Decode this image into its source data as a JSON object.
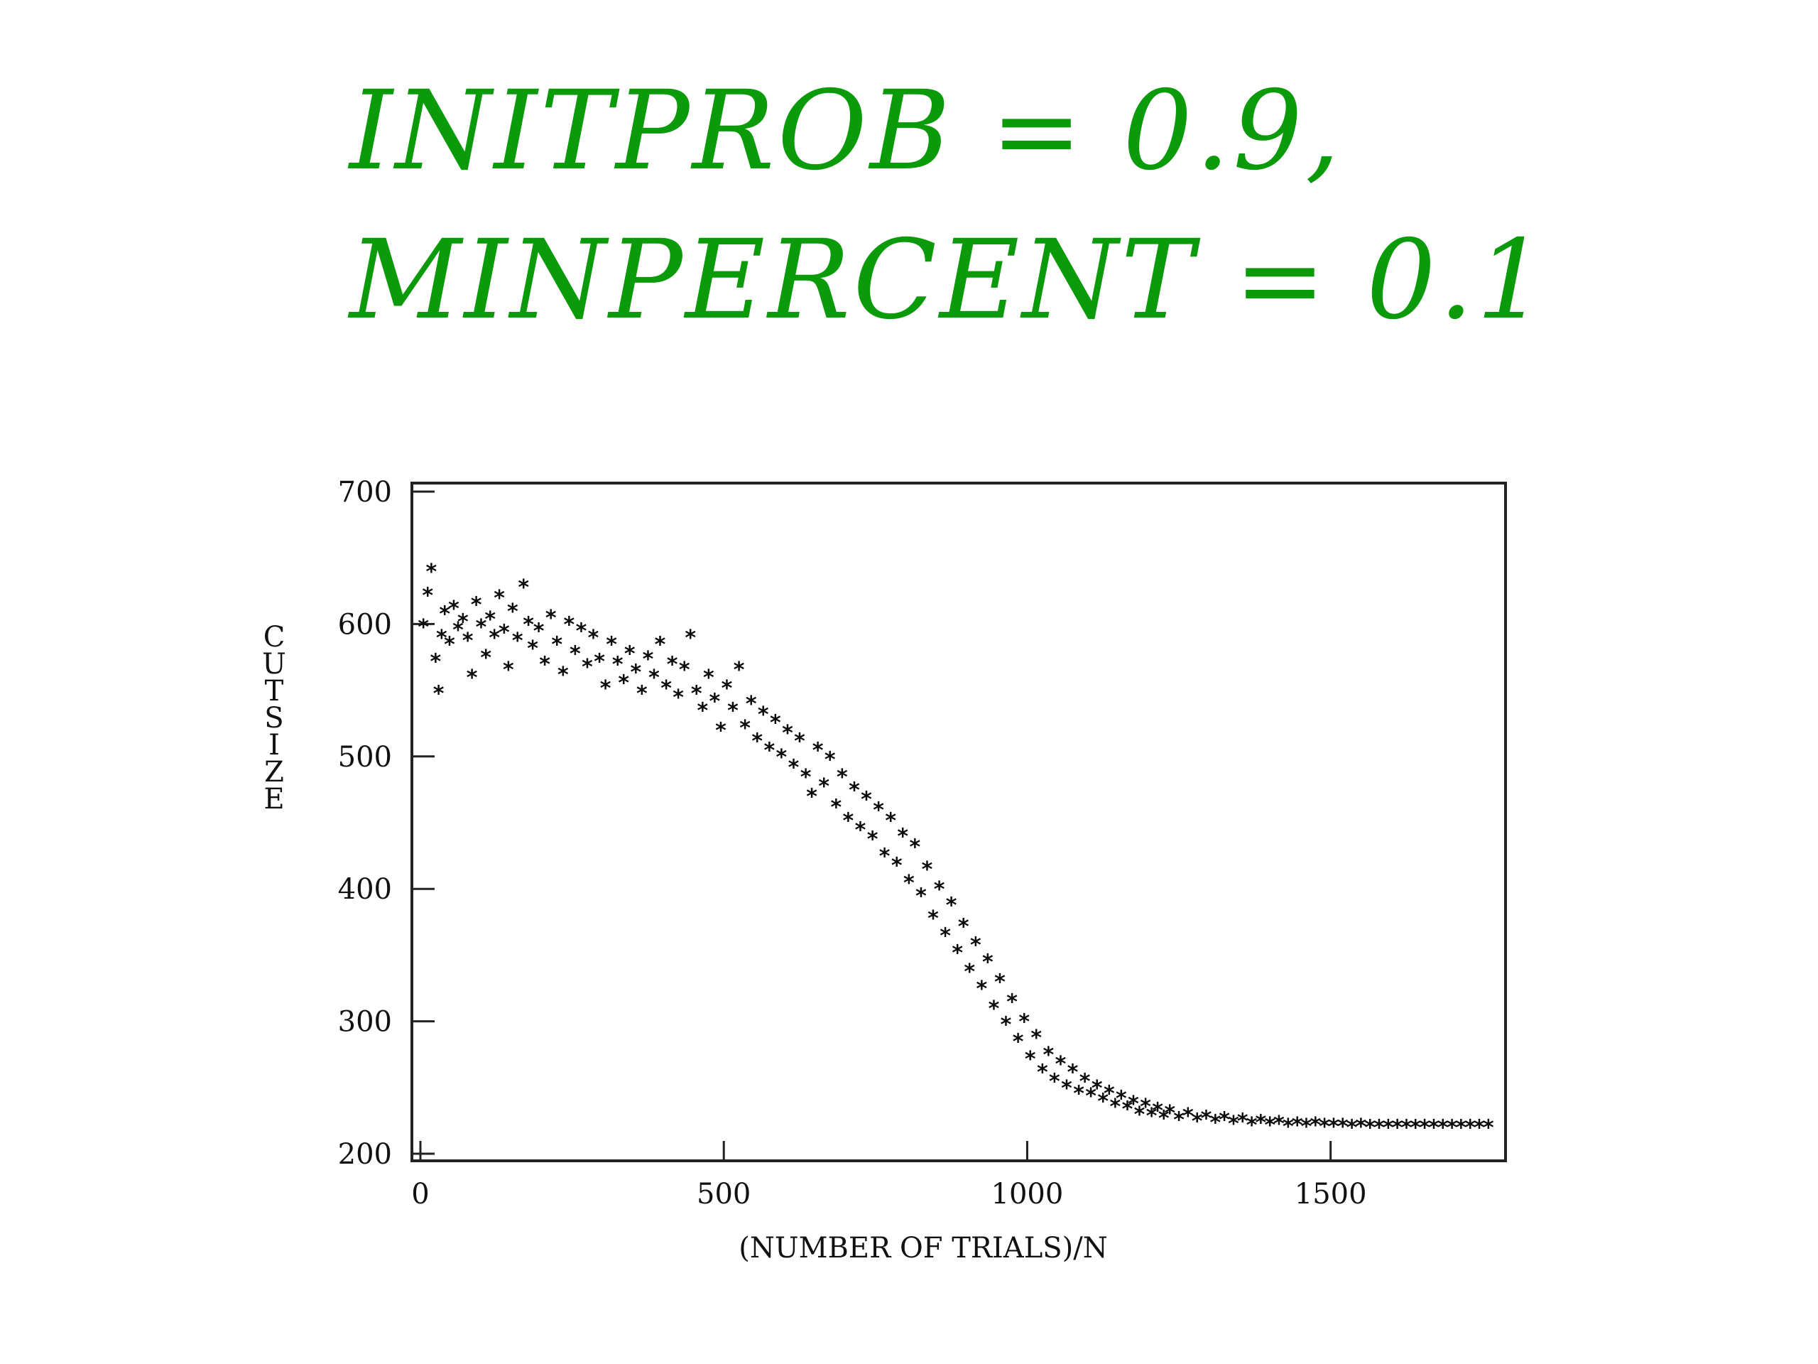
{
  "heading": {
    "line1": "INITPROB = 0.9,",
    "line2": "MINPERCENT = 0.1"
  },
  "chart_data": {
    "type": "scatter",
    "title": "",
    "xlabel": "(NUMBER OF TRIALS)/N",
    "ylabel": "CUTSIZE",
    "xlim": [
      0,
      1800
    ],
    "ylim": [
      200,
      700
    ],
    "xticks": [
      0,
      500,
      1000,
      1500
    ],
    "yticks": [
      200,
      300,
      400,
      500,
      600,
      700
    ],
    "grid": false,
    "legend": "none",
    "marker": "*",
    "marker_color": "#0b0b0b",
    "series": [
      {
        "points": [
          [
            5,
            598
          ],
          [
            12,
            622
          ],
          [
            18,
            640
          ],
          [
            25,
            572
          ],
          [
            30,
            548
          ],
          [
            35,
            590
          ],
          [
            40,
            608
          ],
          [
            48,
            585
          ],
          [
            55,
            612
          ],
          [
            62,
            596
          ],
          [
            70,
            602
          ],
          [
            78,
            588
          ],
          [
            85,
            560
          ],
          [
            92,
            615
          ],
          [
            100,
            598
          ],
          [
            108,
            575
          ],
          [
            115,
            604
          ],
          [
            122,
            590
          ],
          [
            130,
            620
          ],
          [
            138,
            594
          ],
          [
            145,
            566
          ],
          [
            152,
            610
          ],
          [
            160,
            588
          ],
          [
            170,
            628
          ],
          [
            178,
            600
          ],
          [
            185,
            582
          ],
          [
            195,
            595
          ],
          [
            205,
            570
          ],
          [
            215,
            605
          ],
          [
            225,
            585
          ],
          [
            235,
            562
          ],
          [
            245,
            600
          ],
          [
            255,
            578
          ],
          [
            265,
            595
          ],
          [
            275,
            568
          ],
          [
            285,
            590
          ],
          [
            295,
            572
          ],
          [
            305,
            552
          ],
          [
            315,
            585
          ],
          [
            325,
            570
          ],
          [
            335,
            556
          ],
          [
            345,
            578
          ],
          [
            355,
            564
          ],
          [
            365,
            548
          ],
          [
            375,
            574
          ],
          [
            385,
            560
          ],
          [
            395,
            585
          ],
          [
            405,
            552
          ],
          [
            415,
            570
          ],
          [
            425,
            545
          ],
          [
            435,
            566
          ],
          [
            445,
            590
          ],
          [
            455,
            548
          ],
          [
            465,
            535
          ],
          [
            475,
            560
          ],
          [
            485,
            542
          ],
          [
            495,
            520
          ],
          [
            505,
            552
          ],
          [
            515,
            535
          ],
          [
            525,
            566
          ],
          [
            535,
            522
          ],
          [
            545,
            540
          ],
          [
            555,
            512
          ],
          [
            565,
            532
          ],
          [
            575,
            505
          ],
          [
            585,
            526
          ],
          [
            595,
            500
          ],
          [
            605,
            518
          ],
          [
            615,
            492
          ],
          [
            625,
            512
          ],
          [
            635,
            485
          ],
          [
            645,
            470
          ],
          [
            655,
            505
          ],
          [
            665,
            478
          ],
          [
            675,
            498
          ],
          [
            685,
            462
          ],
          [
            695,
            485
          ],
          [
            705,
            452
          ],
          [
            715,
            475
          ],
          [
            725,
            445
          ],
          [
            735,
            468
          ],
          [
            745,
            438
          ],
          [
            755,
            460
          ],
          [
            765,
            425
          ],
          [
            775,
            452
          ],
          [
            785,
            418
          ],
          [
            795,
            440
          ],
          [
            805,
            405
          ],
          [
            815,
            432
          ],
          [
            825,
            395
          ],
          [
            835,
            415
          ],
          [
            845,
            378
          ],
          [
            855,
            400
          ],
          [
            865,
            365
          ],
          [
            875,
            388
          ],
          [
            885,
            352
          ],
          [
            895,
            372
          ],
          [
            905,
            338
          ],
          [
            915,
            358
          ],
          [
            925,
            325
          ],
          [
            935,
            345
          ],
          [
            945,
            310
          ],
          [
            955,
            330
          ],
          [
            965,
            298
          ],
          [
            975,
            315
          ],
          [
            985,
            285
          ],
          [
            995,
            300
          ],
          [
            1005,
            272
          ],
          [
            1015,
            288
          ],
          [
            1025,
            262
          ],
          [
            1035,
            275
          ],
          [
            1045,
            255
          ],
          [
            1055,
            268
          ],
          [
            1065,
            250
          ],
          [
            1075,
            262
          ],
          [
            1085,
            246
          ],
          [
            1095,
            255
          ],
          [
            1105,
            244
          ],
          [
            1115,
            250
          ],
          [
            1125,
            240
          ],
          [
            1135,
            246
          ],
          [
            1145,
            236
          ],
          [
            1155,
            242
          ],
          [
            1165,
            234
          ],
          [
            1175,
            238
          ],
          [
            1185,
            230
          ],
          [
            1195,
            236
          ],
          [
            1205,
            229
          ],
          [
            1215,
            233
          ],
          [
            1225,
            227
          ],
          [
            1235,
            231
          ],
          [
            1250,
            226
          ],
          [
            1265,
            229
          ],
          [
            1280,
            225
          ],
          [
            1295,
            227
          ],
          [
            1310,
            224
          ],
          [
            1325,
            226
          ],
          [
            1340,
            223
          ],
          [
            1355,
            225
          ],
          [
            1370,
            222
          ],
          [
            1385,
            224
          ],
          [
            1400,
            222
          ],
          [
            1415,
            223
          ],
          [
            1430,
            221
          ],
          [
            1445,
            222
          ],
          [
            1460,
            221
          ],
          [
            1475,
            222
          ],
          [
            1490,
            221
          ],
          [
            1505,
            221
          ],
          [
            1520,
            221
          ],
          [
            1535,
            220
          ],
          [
            1550,
            221
          ],
          [
            1565,
            220
          ],
          [
            1580,
            220
          ],
          [
            1595,
            220
          ],
          [
            1610,
            220
          ],
          [
            1625,
            220
          ],
          [
            1640,
            220
          ],
          [
            1655,
            220
          ],
          [
            1670,
            220
          ],
          [
            1685,
            220
          ],
          [
            1700,
            220
          ],
          [
            1715,
            220
          ],
          [
            1730,
            220
          ],
          [
            1745,
            220
          ],
          [
            1760,
            220
          ]
        ]
      }
    ]
  }
}
